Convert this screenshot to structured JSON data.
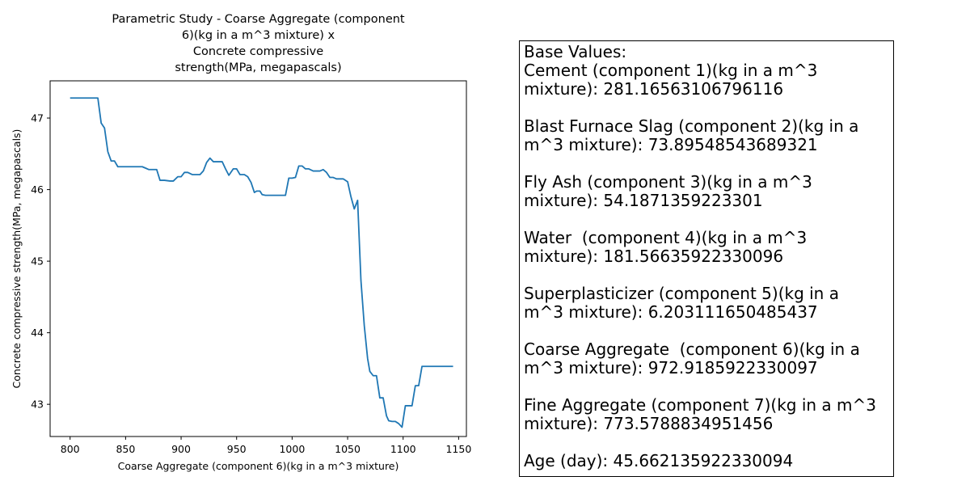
{
  "chart_data": {
    "type": "line",
    "title": "Parametric Study - Coarse Aggregate  (component\n6)(kg in a m^3 mixture) x\nConcrete compressive\nstrength(MPa, megapascals)",
    "xlabel": "Coarse Aggregate  (component 6)(kg in a m^3 mixture)",
    "ylabel": "Concrete compressive strength(MPa, megapascals)",
    "xlim": [
      782,
      1157
    ],
    "ylim": [
      42.55,
      47.52
    ],
    "xticks": [
      "800",
      "850",
      "900",
      "950",
      "1000",
      "1050",
      "1100",
      "1150"
    ],
    "xtick_values": [
      800,
      850,
      900,
      950,
      1000,
      1050,
      1100,
      1150
    ],
    "yticks": [
      "43",
      "44",
      "45",
      "46",
      "47"
    ],
    "ytick_values": [
      43,
      44,
      45,
      46,
      47
    ],
    "grid": false,
    "series": [
      {
        "name": "strength",
        "color": "#1f77b4",
        "x": [
          800,
          805,
          810,
          815,
          820,
          825,
          828,
          831,
          834,
          837,
          840,
          843,
          846,
          850,
          855,
          860,
          865,
          868,
          871,
          875,
          878,
          881,
          885,
          890,
          893,
          897,
          900,
          903,
          906,
          910,
          913,
          917,
          920,
          923,
          926,
          929,
          933,
          937,
          940,
          943,
          947,
          950,
          953,
          957,
          960,
          963,
          966,
          968,
          971,
          973,
          976,
          980,
          985,
          990,
          994,
          997,
          1000,
          1003,
          1006,
          1009,
          1012,
          1015,
          1019,
          1022,
          1025,
          1028,
          1031,
          1034,
          1037,
          1040,
          1043,
          1046,
          1050,
          1053,
          1056,
          1059,
          1062,
          1065,
          1068,
          1070,
          1073,
          1076,
          1079,
          1082,
          1085,
          1087,
          1090,
          1093,
          1096,
          1099,
          1102,
          1105,
          1108,
          1111,
          1114,
          1117,
          1120,
          1123,
          1126,
          1129,
          1132,
          1135,
          1138,
          1141,
          1145
        ],
        "values": [
          47.28,
          47.28,
          47.28,
          47.28,
          47.28,
          47.28,
          46.93,
          46.86,
          46.53,
          46.4,
          46.4,
          46.32,
          46.32,
          46.32,
          46.32,
          46.32,
          46.32,
          46.3,
          46.28,
          46.28,
          46.28,
          46.13,
          46.13,
          46.12,
          46.12,
          46.18,
          46.18,
          46.24,
          46.24,
          46.21,
          46.21,
          46.21,
          46.26,
          46.38,
          46.44,
          46.39,
          46.39,
          46.39,
          46.29,
          46.2,
          46.29,
          46.29,
          46.21,
          46.21,
          46.18,
          46.1,
          45.96,
          45.98,
          45.98,
          45.93,
          45.92,
          45.92,
          45.92,
          45.92,
          45.92,
          46.16,
          46.16,
          46.17,
          46.33,
          46.33,
          46.29,
          46.29,
          46.26,
          46.26,
          46.26,
          46.28,
          46.24,
          46.17,
          46.17,
          46.15,
          46.15,
          46.15,
          46.11,
          45.9,
          45.73,
          45.85,
          44.73,
          44.1,
          43.64,
          43.46,
          43.4,
          43.4,
          43.09,
          43.09,
          42.84,
          42.77,
          42.76,
          42.76,
          42.73,
          42.68,
          42.98,
          42.98,
          42.98,
          43.26,
          43.26,
          43.53,
          43.53,
          43.53,
          43.53,
          43.53,
          43.53,
          43.53,
          43.53,
          43.53,
          43.53
        ]
      }
    ]
  },
  "info_box": {
    "lines": [
      "Base Values:",
      "Cement (component 1)(kg in a m^3",
      "mixture): 281.16563106796116",
      "",
      "Blast Furnace Slag (component 2)(kg in a",
      "m^3 mixture): 73.89548543689321",
      "",
      "Fly Ash (component 3)(kg in a m^3",
      "mixture): 54.1871359223301",
      "",
      "Water  (component 4)(kg in a m^3",
      "mixture): 181.56635922330096",
      "",
      "Superplasticizer (component 5)(kg in a",
      "m^3 mixture): 6.203111650485437",
      "",
      "Coarse Aggregate  (component 6)(kg in a",
      "m^3 mixture): 972.9185922330097",
      "",
      "Fine Aggregate (component 7)(kg in a m^3",
      "mixture): 773.5788834951456",
      "",
      "Age (day): 45.662135922330094"
    ]
  }
}
